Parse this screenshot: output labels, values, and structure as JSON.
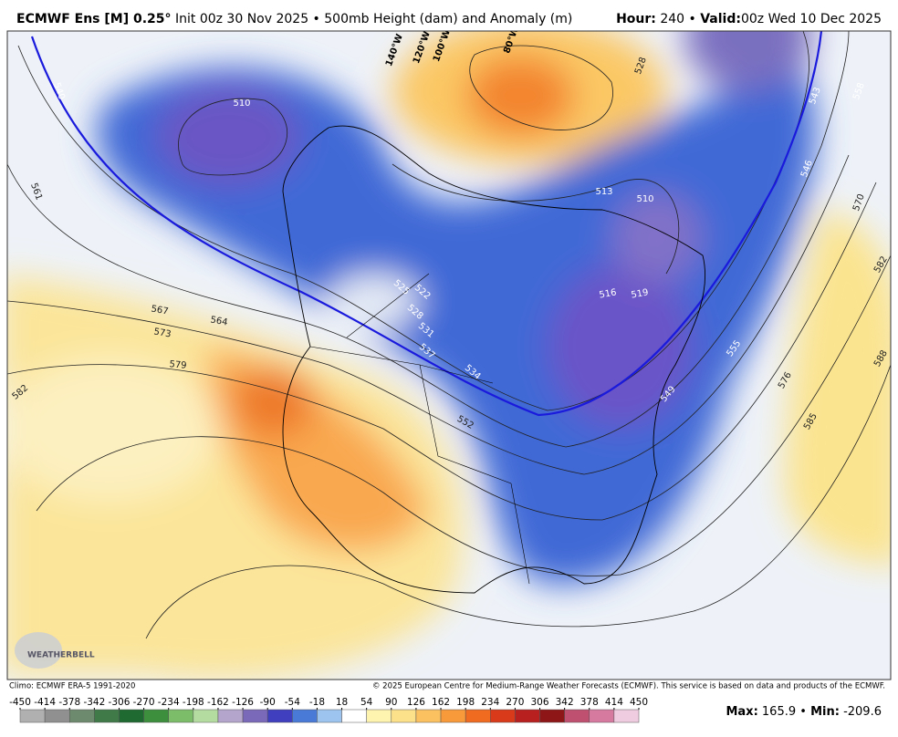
{
  "header": {
    "title": "ECMWF Ens [M] 0.25°",
    "subtitle": "Init 00z 30 Nov 2025 • 500mb Height (dam) and Anomaly (m)",
    "hour_label": "Hour:",
    "hour": "240 •",
    "valid_label": "Valid:",
    "valid": "00z Wed 10 Dec 2025"
  },
  "map": {
    "contour_labels": [
      540,
      510,
      561,
      567,
      564,
      573,
      579,
      582,
      525,
      522,
      528,
      531,
      537,
      534,
      552,
      513,
      510,
      516,
      519,
      528,
      543,
      558,
      546,
      570,
      582,
      588,
      576,
      585,
      555,
      549
    ],
    "longitude_labels": [
      "140°W",
      "120°W",
      "100°W",
      "80°W"
    ],
    "logo": "WEATHERBELL"
  },
  "footer": {
    "climo": "Climo: ECMWF ERA-5 1991-2020",
    "copyright": "© 2025 European Centre for Medium-Range Weather Forecasts (ECMWF). This service is based on data and products of the ECMWF."
  },
  "colorbar": {
    "ticks": [
      -450,
      -414,
      -378,
      -342,
      -306,
      -270,
      -234,
      -198,
      -162,
      -126,
      -90,
      -54,
      -18,
      18,
      54,
      90,
      126,
      162,
      198,
      234,
      270,
      306,
      342,
      378,
      414,
      450
    ]
  },
  "stats": {
    "max_label": "Max:",
    "max": 165.9,
    "separator": "•",
    "min_label": "Min:",
    "min": -209.6
  }
}
